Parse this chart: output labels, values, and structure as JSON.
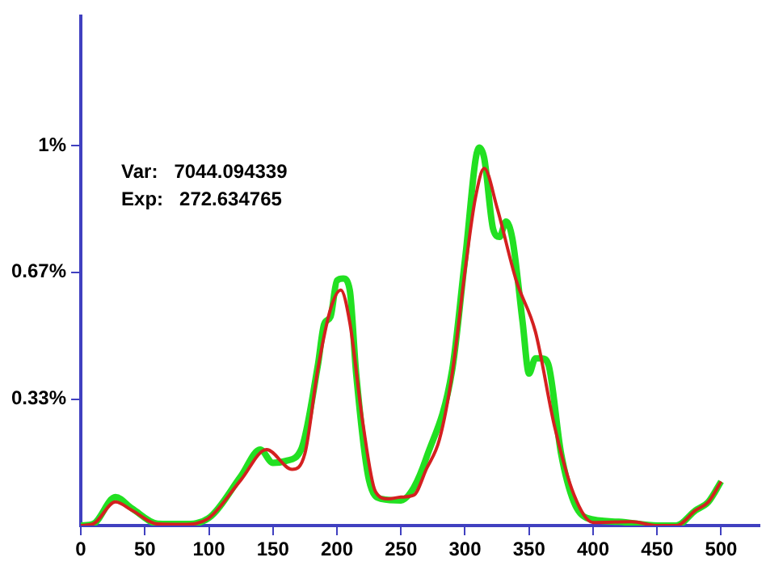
{
  "chart_data": {
    "type": "line",
    "annotations": [
      "Var:   7044.094339",
      "Exp:   272.634765"
    ],
    "xlim": [
      0,
      530
    ],
    "xticks": [
      0,
      50,
      100,
      150,
      200,
      250,
      300,
      350,
      400,
      450,
      500
    ],
    "ylim": [
      0,
      1.34
    ],
    "yticks": [
      {
        "value": 0.333,
        "label": "0.33%"
      },
      {
        "value": 0.667,
        "label": "0.67%"
      },
      {
        "value": 1,
        "label": "1%"
      }
    ],
    "grid": false,
    "legend": false,
    "marker": "none",
    "line_style": "solid",
    "series": [
      {
        "color": "#22e022",
        "x": [
          0,
          10,
          27,
          40,
          60,
          80,
          100,
          125,
          140,
          150,
          160,
          172,
          185,
          190,
          195,
          200,
          205,
          210,
          215,
          225,
          235,
          250,
          260,
          270,
          290,
          300,
          311,
          315,
          322,
          327,
          332,
          337,
          345,
          350,
          355,
          360,
          365,
          375,
          385,
          395,
          420,
          450,
          465,
          480,
          490,
          500
        ],
        "values": [
          0,
          0.005,
          0.075,
          0.045,
          0.005,
          0.004,
          0.02,
          0.13,
          0.2,
          0.165,
          0.17,
          0.2,
          0.42,
          0.53,
          0.55,
          0.645,
          0.65,
          0.62,
          0.4,
          0.12,
          0.07,
          0.066,
          0.1,
          0.18,
          0.41,
          0.7,
          0.995,
          0.967,
          0.78,
          0.76,
          0.8,
          0.755,
          0.535,
          0.4,
          0.44,
          0.44,
          0.425,
          0.19,
          0.062,
          0.02,
          0.01,
          0,
          0,
          0.04,
          0.062,
          0.116
        ]
      },
      {
        "color": "#d42020",
        "x": [
          0,
          10,
          27,
          40,
          60,
          80,
          100,
          125,
          145,
          165,
          175,
          185,
          195,
          203,
          210,
          220,
          230,
          240,
          250,
          260,
          270,
          280,
          290,
          300,
          308,
          315,
          325,
          340,
          355,
          370,
          385,
          400,
          430,
          450,
          465,
          480,
          490,
          500
        ],
        "values": [
          0,
          0.005,
          0.062,
          0.04,
          0.004,
          0.003,
          0.02,
          0.12,
          0.2,
          0.148,
          0.19,
          0.41,
          0.57,
          0.62,
          0.535,
          0.275,
          0.09,
          0.07,
          0.075,
          0.08,
          0.15,
          0.226,
          0.4,
          0.67,
          0.86,
          0.94,
          0.837,
          0.645,
          0.51,
          0.26,
          0.082,
          0.008,
          0.01,
          0,
          0,
          0.04,
          0.062,
          0.116
        ]
      }
    ]
  }
}
